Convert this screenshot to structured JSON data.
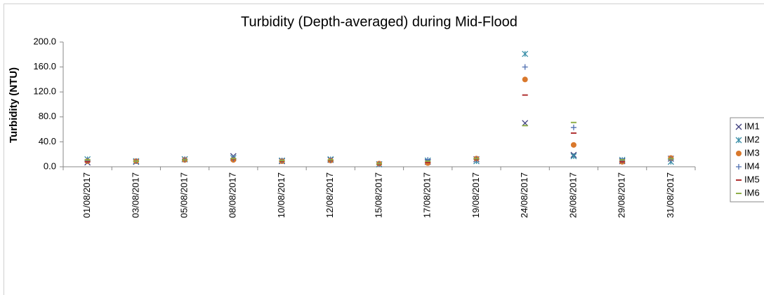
{
  "chart_data": {
    "type": "scatter",
    "title": "Turbidity (Depth-averaged) during Mid-Flood",
    "y_label": "Turbidity (NTU)",
    "categories": [
      "01/08/2017",
      "03/08/2017",
      "05/08/2017",
      "08/08/2017",
      "10/08/2017",
      "12/08/2017",
      "15/08/2017",
      "17/08/2017",
      "19/08/2017",
      "24/08/2017",
      "26/08/2017",
      "29/08/2017",
      "31/08/2017"
    ],
    "series": [
      {
        "name": "IM1",
        "color": "#3f3f7f",
        "marker": "x",
        "values": [
          7,
          8,
          12,
          17,
          9,
          11,
          4,
          8,
          12,
          70,
          19,
          9,
          13
        ]
      },
      {
        "name": "IM2",
        "color": "#3b8fa8",
        "marker": "star",
        "values": [
          12,
          9,
          12,
          14,
          10,
          12,
          4,
          10,
          9,
          181,
          17,
          11,
          8
        ]
      },
      {
        "name": "IM3",
        "color": "#d9782c",
        "marker": "circle",
        "values": [
          9,
          9,
          11,
          11,
          9,
          10,
          5,
          6,
          13,
          140,
          35,
          8,
          14
        ]
      },
      {
        "name": "IM4",
        "color": "#4f6fb0",
        "marker": "plus",
        "values": [
          10,
          9,
          12,
          13,
          10,
          11,
          4,
          11,
          12,
          160,
          63,
          10,
          12
        ]
      },
      {
        "name": "IM5",
        "color": "#b03030",
        "marker": "dash",
        "values": [
          8,
          9,
          11,
          12,
          9,
          10,
          4,
          7,
          12,
          115,
          54,
          8,
          13
        ]
      },
      {
        "name": "IM6",
        "color": "#8fae48",
        "marker": "dash",
        "values": [
          11,
          9,
          11,
          13,
          10,
          11,
          5,
          9,
          13,
          66,
          71,
          11,
          13
        ]
      }
    ],
    "ylim": [
      0,
      200
    ],
    "yticks": [
      {
        "value": 0,
        "label": "0.0"
      },
      {
        "value": 40,
        "label": "40.0"
      },
      {
        "value": 80,
        "label": "80.0"
      },
      {
        "value": 120,
        "label": "120.0"
      },
      {
        "value": 160,
        "label": "160.0"
      },
      {
        "value": 200,
        "label": "200.0"
      }
    ],
    "legend": "right"
  }
}
